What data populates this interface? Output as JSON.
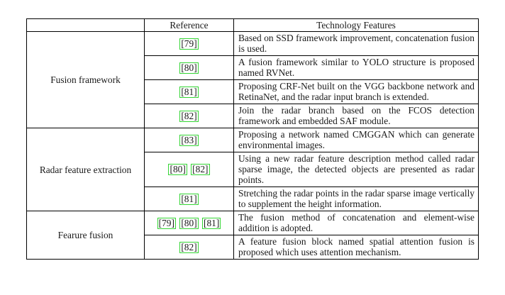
{
  "table": {
    "headers": [
      "",
      "Reference",
      "Technology Features"
    ],
    "groups": [
      {
        "category": "Fusion framework",
        "rows": [
          {
            "refs": [
              "79"
            ],
            "text": "Based on SSD framework improvement, concatenation fusion is used."
          },
          {
            "refs": [
              "80"
            ],
            "text": "A fusion framework similar to YOLO structure is proposed named RVNet."
          },
          {
            "refs": [
              "81"
            ],
            "text": "Proposing CRF-Net built on the VGG backbone network and RetinaNet, and the radar input branch is extended."
          },
          {
            "refs": [
              "82"
            ],
            "text": "Join the radar branch based on the FCOS detection framework and embedded SAF module."
          }
        ]
      },
      {
        "category": "Radar feature extraction",
        "rows": [
          {
            "refs": [
              "83"
            ],
            "text": "Proposing a network named CMGGAN which can generate environmental images."
          },
          {
            "refs": [
              "80",
              "82"
            ],
            "text": "Using a new radar feature description method called radar sparse image, the detected objects are presented as radar points."
          },
          {
            "refs": [
              "81"
            ],
            "text": "Stretching the radar points in the radar sparse image vertically to supplement the height information."
          }
        ]
      },
      {
        "category": "Fearure fusion",
        "rows": [
          {
            "refs": [
              "79",
              "80",
              "81"
            ],
            "text": "The fusion method of concatenation and element-wise addition is adopted."
          },
          {
            "refs": [
              "82"
            ],
            "text": "A feature fusion block named spatial attention fusion is proposed which uses attention mechanism."
          }
        ]
      }
    ]
  },
  "colors": {
    "citation_box": "#34d534",
    "rule": "#000000"
  }
}
